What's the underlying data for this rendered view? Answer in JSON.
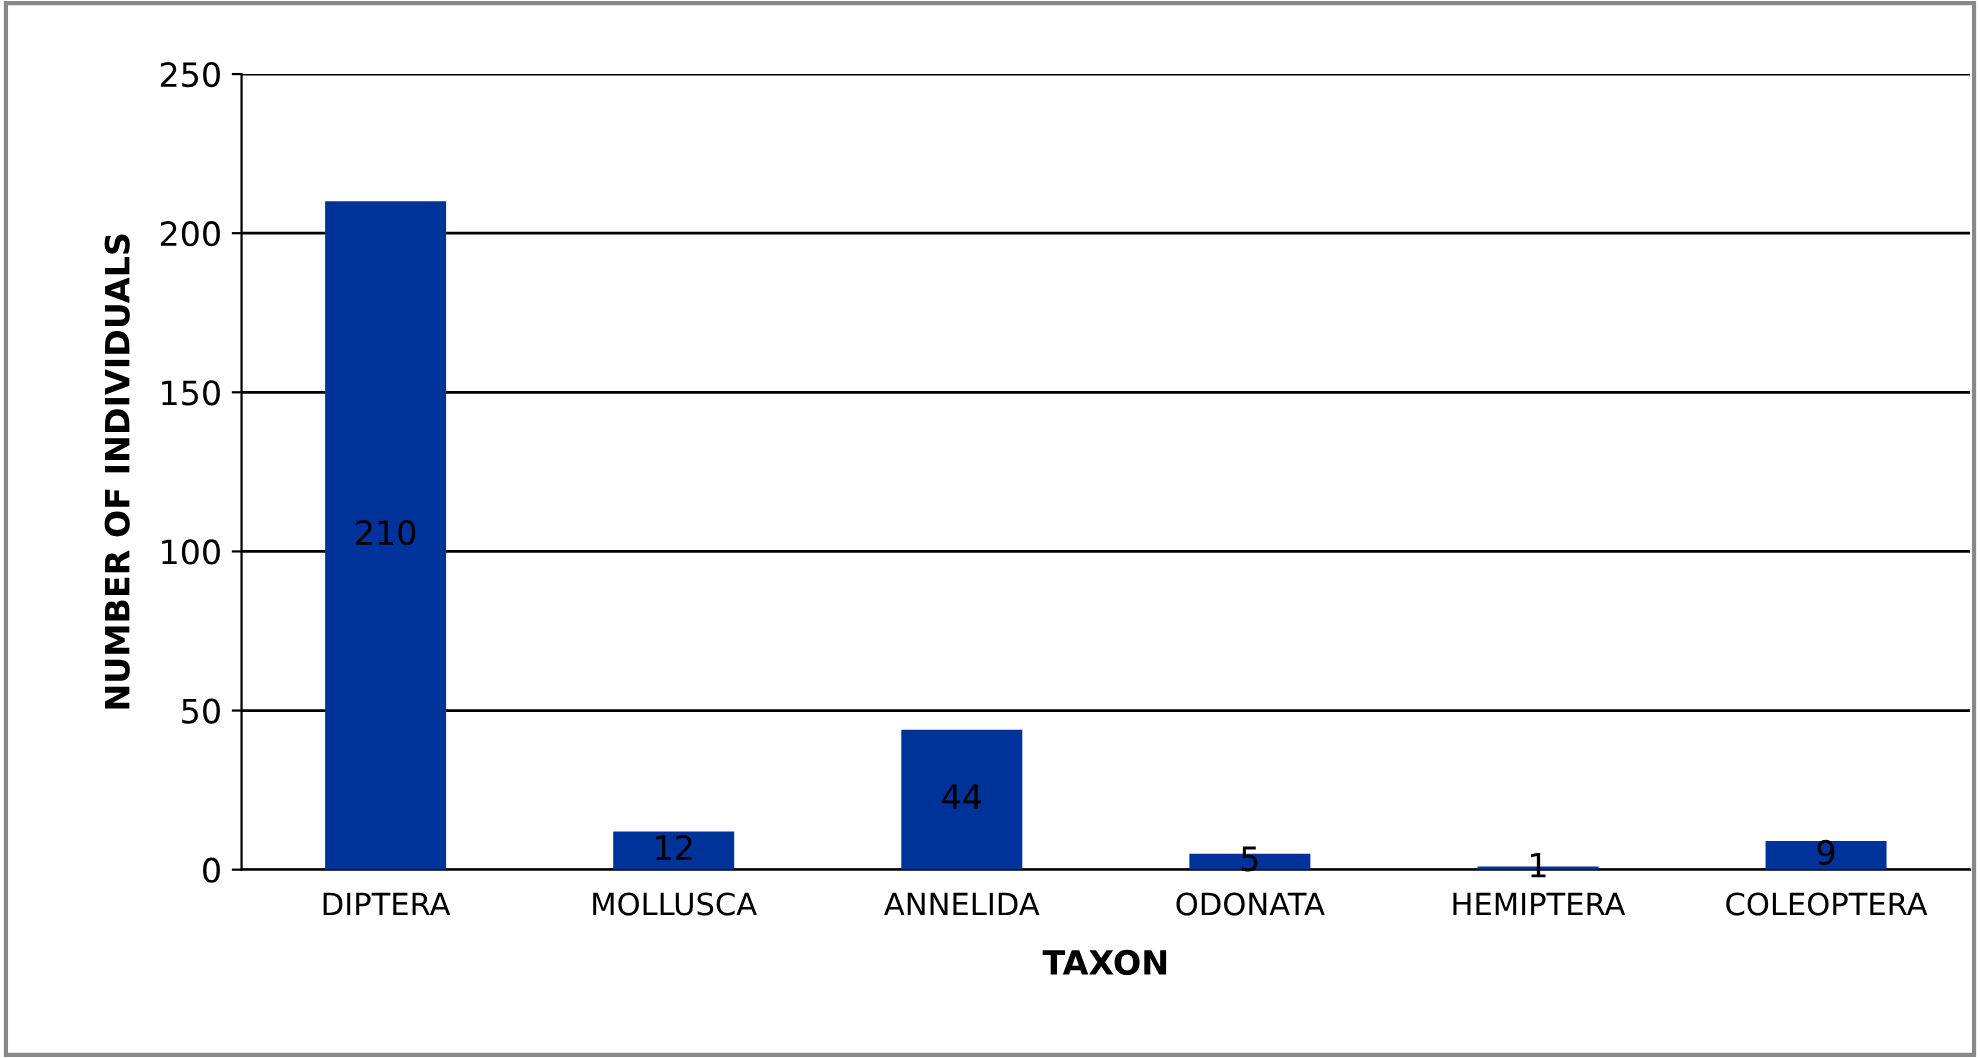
{
  "chart_data": {
    "type": "bar",
    "xlabel": "TAXON",
    "ylabel": "NUMBER OF INDIVIDUALS",
    "categories": [
      "DIPTERA",
      "MOLLUSCA",
      "ANNELIDA",
      "ODONATA",
      "HEMIPTERA",
      "COLEOPTERA"
    ],
    "values": [
      210,
      12,
      44,
      5,
      1,
      9
    ],
    "color": "#003399",
    "ylim": [
      0,
      250
    ],
    "yticks": [
      0,
      50,
      100,
      150,
      200,
      250
    ],
    "grid": "y",
    "data_labels": true
  }
}
